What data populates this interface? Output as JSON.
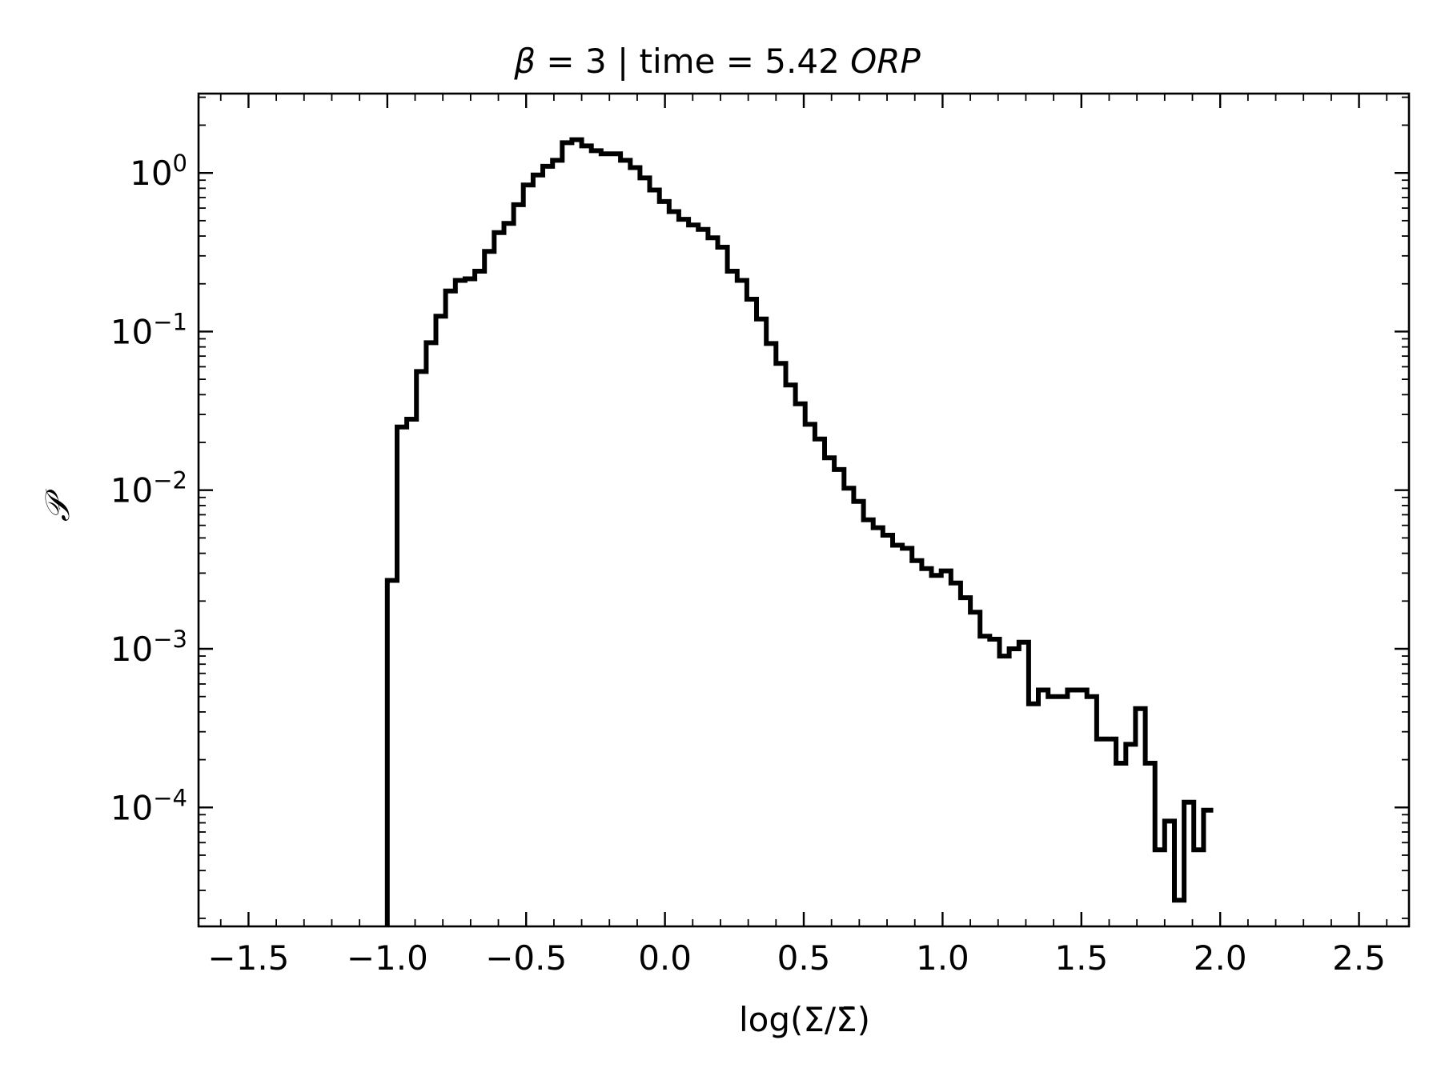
{
  "chart_data": {
    "type": "histogram-step",
    "title": {
      "beta_symbol": "β",
      "beta_value": " = 3 | time = 5.42 ",
      "unit": "ORP"
    },
    "xlabel": "log(Σ/Σ̄)",
    "ylabel": "𝒫",
    "xlim": [
      -1.68,
      2.68
    ],
    "ylim_log10": [
      -4.75,
      0.5
    ],
    "yscale": "log",
    "grid": false,
    "x_ticks": [
      {
        "value": -1.5,
        "label": "−1.5"
      },
      {
        "value": -1.0,
        "label": "−1.0"
      },
      {
        "value": -0.5,
        "label": "−0.5"
      },
      {
        "value": 0.0,
        "label": "0.0"
      },
      {
        "value": 0.5,
        "label": "0.5"
      },
      {
        "value": 1.0,
        "label": "1.0"
      },
      {
        "value": 1.5,
        "label": "1.5"
      },
      {
        "value": 2.0,
        "label": "2.0"
      },
      {
        "value": 2.5,
        "label": "2.5"
      }
    ],
    "y_ticks": [
      {
        "exp": 0,
        "base": "10",
        "sup": "0"
      },
      {
        "exp": -1,
        "base": "10",
        "sup": "−1"
      },
      {
        "exp": -2,
        "base": "10",
        "sup": "−2"
      },
      {
        "exp": -3,
        "base": "10",
        "sup": "−3"
      },
      {
        "exp": -4,
        "base": "10",
        "sup": "−4"
      }
    ],
    "series": [
      {
        "color": "#000000",
        "bin_edges_start": -1.0,
        "bin_width": 0.035,
        "values": [
          0.0027,
          0.025,
          0.028,
          0.056,
          0.085,
          0.125,
          0.18,
          0.21,
          0.215,
          0.24,
          0.32,
          0.42,
          0.48,
          0.63,
          0.84,
          0.97,
          1.1,
          1.2,
          1.55,
          1.62,
          1.48,
          1.38,
          1.32,
          1.32,
          1.2,
          1.08,
          0.93,
          0.78,
          0.66,
          0.57,
          0.51,
          0.47,
          0.44,
          0.39,
          0.34,
          0.24,
          0.21,
          0.16,
          0.12,
          0.084,
          0.063,
          0.046,
          0.035,
          0.026,
          0.021,
          0.016,
          0.0135,
          0.0103,
          0.0085,
          0.0065,
          0.0058,
          0.0052,
          0.0045,
          0.0043,
          0.0036,
          0.0032,
          0.0029,
          0.0031,
          0.0026,
          0.0021,
          0.0017,
          0.0012,
          0.00115,
          0.0009,
          0.001,
          0.0011,
          0.00045,
          0.00055,
          0.0005,
          0.0005,
          0.00055,
          0.00055,
          0.0005,
          0.00027,
          0.00027,
          0.00019,
          0.00025,
          0.00042,
          0.00019,
          5.4e-05,
          8.2e-05,
          2.6e-05,
          0.000108,
          5.4e-05,
          9.6e-05
        ]
      }
    ]
  }
}
